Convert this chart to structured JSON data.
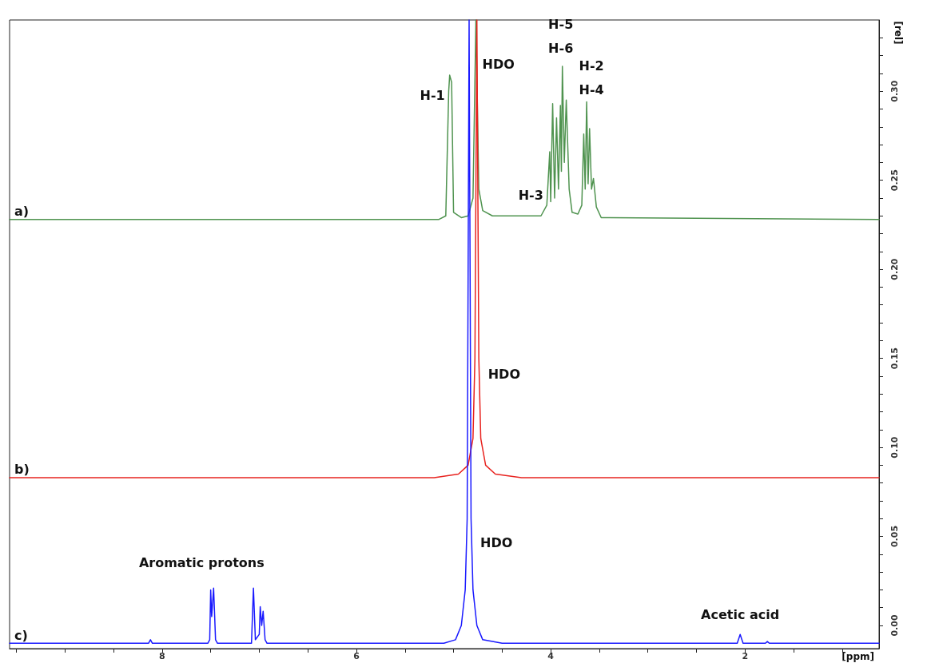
{
  "chart_data": {
    "type": "line",
    "xlabel": "[ppm]",
    "ylabel": "[rel]",
    "xlim": [
      9.57,
      0.62
    ],
    "ylim": [
      -0.013,
      0.34
    ],
    "xticks": [
      {
        "value": 9.5,
        "label": null
      },
      {
        "value": 9,
        "label": null
      },
      {
        "value": 8.5,
        "label": null
      },
      8,
      {
        "value": 7.5,
        "label": null
      },
      {
        "value": 7,
        "label": null
      },
      {
        "value": 6.5,
        "label": null
      },
      6,
      {
        "value": 5.5,
        "label": null
      },
      {
        "value": 5,
        "label": null
      },
      {
        "value": 4.5,
        "label": null
      },
      4,
      {
        "value": 3.5,
        "label": null
      },
      {
        "value": 3,
        "label": null
      },
      {
        "value": 2.5,
        "label": null
      },
      2,
      {
        "value": 1.5,
        "label": null
      },
      {
        "value": 1,
        "label": null
      }
    ],
    "yticks": [
      {
        "value": 0,
        "label": "0.00"
      },
      {
        "value": 0.01,
        "label": null
      },
      {
        "value": 0.02,
        "label": null
      },
      {
        "value": 0.03,
        "label": null
      },
      {
        "value": 0.04,
        "label": null
      },
      0.05,
      {
        "value": 0.06,
        "label": null
      },
      {
        "value": 0.07,
        "label": null
      },
      {
        "value": 0.08,
        "label": null
      },
      {
        "value": 0.09,
        "label": null
      },
      {
        "value": 0.1,
        "label": "0.10"
      },
      {
        "value": 0.11,
        "label": null
      },
      {
        "value": 0.12,
        "label": null
      },
      {
        "value": 0.13,
        "label": null
      },
      {
        "value": 0.14,
        "label": null
      },
      0.15,
      {
        "value": 0.16,
        "label": null
      },
      {
        "value": 0.17,
        "label": null
      },
      {
        "value": 0.18,
        "label": null
      },
      {
        "value": 0.19,
        "label": null
      },
      {
        "value": 0.2,
        "label": "0.20"
      },
      {
        "value": 0.21,
        "label": null
      },
      {
        "value": 0.22,
        "label": null
      },
      {
        "value": 0.23,
        "label": null
      },
      {
        "value": 0.24,
        "label": null
      },
      0.25,
      {
        "value": 0.26,
        "label": null
      },
      {
        "value": 0.27,
        "label": null
      },
      {
        "value": 0.28,
        "label": null
      },
      {
        "value": 0.29,
        "label": null
      },
      {
        "value": 0.3,
        "label": "0.30"
      },
      {
        "value": 0.31,
        "label": null
      },
      {
        "value": 0.32,
        "label": null
      },
      {
        "value": 0.33,
        "label": null
      }
    ],
    "grid": false,
    "legend": false,
    "marker": "none",
    "series": [
      {
        "name": "a)",
        "color": "#4f934f",
        "x": [
          9.57,
          5.15,
          5.08,
          5.05,
          5.04,
          5.02,
          5.0,
          4.92,
          4.85,
          4.8,
          4.77,
          4.74,
          4.7,
          4.6,
          4.1,
          4.04,
          4.01,
          4.0,
          3.98,
          3.96,
          3.94,
          3.92,
          3.9,
          3.89,
          3.88,
          3.86,
          3.84,
          3.81,
          3.78,
          3.72,
          3.68,
          3.66,
          3.645,
          3.63,
          3.615,
          3.6,
          3.58,
          3.56,
          3.53,
          3.48,
          0.62
        ],
        "values": [
          0.228,
          0.228,
          0.23,
          0.3,
          0.309,
          0.305,
          0.232,
          0.229,
          0.23,
          0.24,
          0.34,
          0.245,
          0.233,
          0.23,
          0.23,
          0.236,
          0.266,
          0.238,
          0.293,
          0.24,
          0.285,
          0.245,
          0.292,
          0.255,
          0.314,
          0.26,
          0.295,
          0.245,
          0.232,
          0.231,
          0.236,
          0.276,
          0.245,
          0.294,
          0.248,
          0.279,
          0.245,
          0.251,
          0.235,
          0.229,
          0.228
        ]
      },
      {
        "name": "b)",
        "color": "#e8231f",
        "x": [
          9.57,
          5.2,
          4.95,
          4.85,
          4.8,
          4.78,
          4.76,
          4.74,
          4.72,
          4.67,
          4.57,
          4.3,
          0.62
        ],
        "values": [
          0.083,
          0.083,
          0.085,
          0.09,
          0.105,
          0.15,
          0.34,
          0.15,
          0.105,
          0.09,
          0.085,
          0.083,
          0.083
        ]
      },
      {
        "name": "c)",
        "color": "#1a1aff",
        "x": [
          9.57,
          8.14,
          8.12,
          8.1,
          7.53,
          7.51,
          7.5,
          7.49,
          7.47,
          7.45,
          7.43,
          7.08,
          7.06,
          7.04,
          7.0,
          6.99,
          6.975,
          6.96,
          6.94,
          6.92,
          5.1,
          4.98,
          4.92,
          4.88,
          4.86,
          4.84,
          4.82,
          4.8,
          4.76,
          4.7,
          4.5,
          2.08,
          2.05,
          2.02,
          1.79,
          1.77,
          1.75,
          0.62
        ],
        "values": [
          -0.01,
          -0.01,
          -0.008,
          -0.01,
          -0.01,
          -0.008,
          0.02,
          0.005,
          0.021,
          -0.008,
          -0.01,
          -0.01,
          0.021,
          -0.008,
          -0.005,
          0.0105,
          0.0,
          0.008,
          -0.008,
          -0.01,
          -0.01,
          -0.008,
          0.0,
          0.02,
          0.06,
          0.34,
          0.06,
          0.02,
          0.0,
          -0.008,
          -0.01,
          -0.01,
          -0.005,
          -0.01,
          -0.01,
          -0.009,
          -0.01,
          -0.01
        ]
      }
    ],
    "annotations": [
      {
        "text": "H-1",
        "x": 5.04,
        "y": 0.309
      },
      {
        "text": "HDO",
        "x": 4.77,
        "y": 0.34
      },
      {
        "text": "H-3",
        "x": 4.01,
        "y": 0.266
      },
      {
        "text": "H-5",
        "x": 3.88,
        "y": 0.314
      },
      {
        "text": "H-6",
        "x": 3.88,
        "y": 0.314
      },
      {
        "text": "H-2",
        "x": 3.63,
        "y": 0.294
      },
      {
        "text": "H-4",
        "x": 3.63,
        "y": 0.294
      },
      {
        "text": "HDO",
        "x": 4.76,
        "y": 0.15
      },
      {
        "text": "HDO",
        "x": 4.84,
        "y": 0.06
      },
      {
        "text": "Aromatic protons",
        "x": 7.47,
        "y": 0.021
      },
      {
        "text": "Acetic acid",
        "x": 2.05,
        "y": -0.005
      }
    ]
  }
}
